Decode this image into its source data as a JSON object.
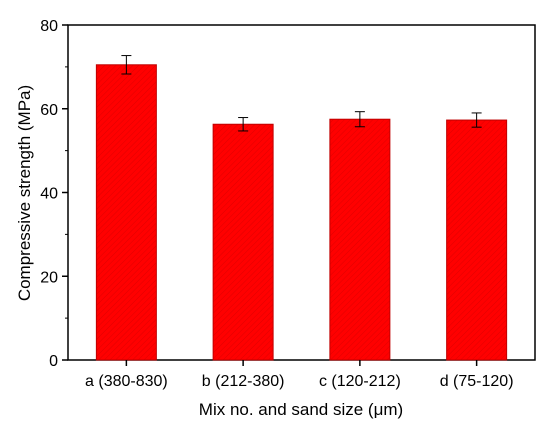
{
  "chart_data": {
    "type": "bar",
    "title": "",
    "xlabel": "Mix no. and sand size (μm)",
    "ylabel": "Compressive strength (MPa)",
    "categories": [
      "a (380-830)",
      "b (212-380)",
      "c (120-212)",
      "d (75-120)"
    ],
    "values": [
      70.5,
      56.3,
      57.5,
      57.3
    ],
    "errors": [
      2.2,
      1.6,
      1.8,
      1.7
    ],
    "ylim": [
      0,
      80
    ],
    "yticks": [
      0,
      20,
      40,
      60,
      80
    ],
    "grid": false,
    "legend": "none",
    "bar_color": "#ff0000",
    "bar_edge_color": "#c00000"
  }
}
